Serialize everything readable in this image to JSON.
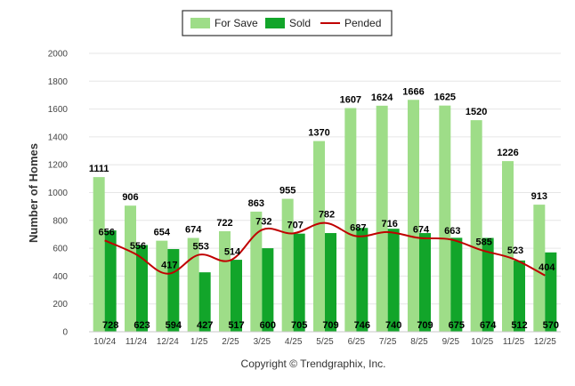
{
  "chart_data": {
    "type": "bar",
    "title": "",
    "xlabel": "",
    "ylabel": "Number of Homes",
    "ylim": [
      0,
      2000
    ],
    "yticks": [
      0,
      200,
      400,
      600,
      800,
      1000,
      1200,
      1400,
      1600,
      1800,
      2000
    ],
    "grid": true,
    "legend_position": "top-center",
    "categories": [
      "10/24",
      "11/24",
      "12/24",
      "1/25",
      "2/25",
      "3/25",
      "4/25",
      "5/25",
      "6/25",
      "7/25",
      "8/25",
      "9/25",
      "10/25",
      "11/25",
      "12/25"
    ],
    "series": [
      {
        "name": "For Save",
        "type": "bar",
        "color": "#9edd88",
        "values": [
          1111,
          906,
          654,
          674,
          722,
          863,
          955,
          1370,
          1607,
          1624,
          1666,
          1625,
          1520,
          1226,
          913
        ]
      },
      {
        "name": "Sold",
        "type": "bar",
        "color": "#12a52a",
        "values": [
          728,
          623,
          594,
          427,
          517,
          600,
          705,
          709,
          746,
          740,
          709,
          675,
          674,
          512,
          570
        ]
      },
      {
        "name": "Pended",
        "type": "line",
        "color": "#c00000",
        "values": [
          656,
          556,
          417,
          553,
          514,
          732,
          707,
          782,
          687,
          716,
          674,
          663,
          585,
          523,
          404
        ]
      }
    ],
    "credit": "Copyright © Trendgraphix, Inc."
  }
}
